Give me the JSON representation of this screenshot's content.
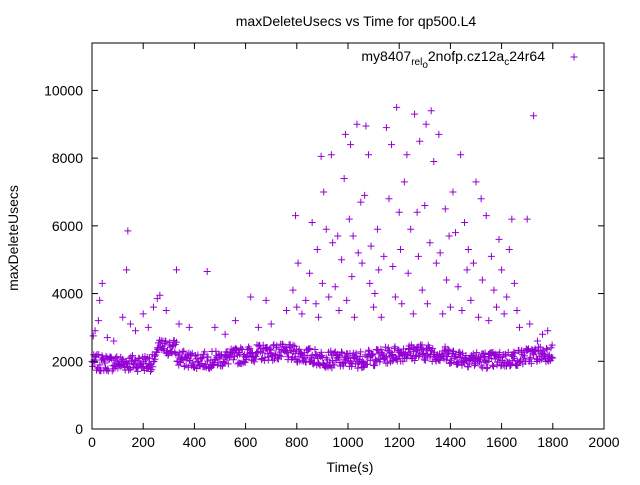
{
  "chart_data": {
    "type": "scatter",
    "title": "maxDeleteUsecs vs Time for qp500.L4",
    "xlabel": "Time(s)",
    "ylabel": "maxDeleteUsecs",
    "xlim": [
      0,
      2000
    ],
    "ylim": [
      0,
      11400
    ],
    "xticks": [
      "0",
      "200",
      "400",
      "600",
      "800",
      "1000",
      "1200",
      "1400",
      "1600",
      "1800",
      "2000"
    ],
    "yticks": [
      "0",
      "2000",
      "4000",
      "6000",
      "8000",
      "10000"
    ],
    "grid": false,
    "legend_position": "top-right",
    "marker": "+",
    "series": [
      {
        "name": "my8407_rel_o2nofp.cz12a_c24r64",
        "legend": {
          "parts": [
            {
              "text": "my8407",
              "shift": "base"
            },
            {
              "text": "rel",
              "shift": "sub"
            },
            {
              "text": "o",
              "shift": "sub2"
            },
            {
              "text": "2nofp.cz12a",
              "shift": "base"
            },
            {
              "text": "c",
              "shift": "sub"
            },
            {
              "text": "24r64",
              "shift": "base"
            }
          ]
        },
        "color": "#9400d3",
        "outliers": [
          [
            5,
            2750
          ],
          [
            12,
            2900
          ],
          [
            25,
            3200
          ],
          [
            30,
            3800
          ],
          [
            40,
            4300
          ],
          [
            60,
            2700
          ],
          [
            85,
            2600
          ],
          [
            120,
            3300
          ],
          [
            135,
            4700
          ],
          [
            140,
            5850
          ],
          [
            150,
            3100
          ],
          [
            170,
            2900
          ],
          [
            200,
            3400
          ],
          [
            220,
            3000
          ],
          [
            240,
            3600
          ],
          [
            255,
            3850
          ],
          [
            265,
            3950
          ],
          [
            290,
            3500
          ],
          [
            330,
            4700
          ],
          [
            340,
            3100
          ],
          [
            380,
            3000
          ],
          [
            450,
            4650
          ],
          [
            480,
            3000
          ],
          [
            520,
            2800
          ],
          [
            560,
            3200
          ],
          [
            620,
            3900
          ],
          [
            650,
            3000
          ],
          [
            680,
            3800
          ],
          [
            700,
            3100
          ],
          [
            760,
            3500
          ],
          [
            785,
            4100
          ],
          [
            800,
            3600
          ],
          [
            795,
            6300
          ],
          [
            805,
            4900
          ],
          [
            820,
            3400
          ],
          [
            835,
            3800
          ],
          [
            850,
            4600
          ],
          [
            860,
            6100
          ],
          [
            875,
            3700
          ],
          [
            880,
            5300
          ],
          [
            885,
            3300
          ],
          [
            895,
            8050
          ],
          [
            900,
            4300
          ],
          [
            905,
            7000
          ],
          [
            915,
            5900
          ],
          [
            925,
            3900
          ],
          [
            935,
            8100
          ],
          [
            940,
            5500
          ],
          [
            950,
            4200
          ],
          [
            960,
            5700
          ],
          [
            965,
            3500
          ],
          [
            975,
            5000
          ],
          [
            985,
            7400
          ],
          [
            990,
            8700
          ],
          [
            995,
            3800
          ],
          [
            1005,
            6200
          ],
          [
            1010,
            8400
          ],
          [
            1015,
            4500
          ],
          [
            1020,
            5700
          ],
          [
            1025,
            3300
          ],
          [
            1035,
            9000
          ],
          [
            1040,
            5200
          ],
          [
            1050,
            6700
          ],
          [
            1055,
            4900
          ],
          [
            1065,
            6900
          ],
          [
            1070,
            8950
          ],
          [
            1080,
            8100
          ],
          [
            1085,
            4300
          ],
          [
            1090,
            5400
          ],
          [
            1100,
            3600
          ],
          [
            1105,
            4000
          ],
          [
            1115,
            5900
          ],
          [
            1120,
            4700
          ],
          [
            1130,
            3300
          ],
          [
            1140,
            5100
          ],
          [
            1150,
            8900
          ],
          [
            1160,
            6800
          ],
          [
            1170,
            8400
          ],
          [
            1175,
            4800
          ],
          [
            1185,
            3900
          ],
          [
            1190,
            9500
          ],
          [
            1200,
            6400
          ],
          [
            1205,
            5300
          ],
          [
            1210,
            3700
          ],
          [
            1220,
            7300
          ],
          [
            1230,
            8100
          ],
          [
            1235,
            4600
          ],
          [
            1245,
            5900
          ],
          [
            1255,
            3400
          ],
          [
            1260,
            9300
          ],
          [
            1270,
            6400
          ],
          [
            1275,
            5100
          ],
          [
            1280,
            8500
          ],
          [
            1290,
            4100
          ],
          [
            1300,
            6600
          ],
          [
            1305,
            9000
          ],
          [
            1310,
            3700
          ],
          [
            1320,
            5500
          ],
          [
            1325,
            9400
          ],
          [
            1335,
            7900
          ],
          [
            1345,
            4900
          ],
          [
            1355,
            8700
          ],
          [
            1360,
            5200
          ],
          [
            1370,
            3400
          ],
          [
            1380,
            6500
          ],
          [
            1385,
            4400
          ],
          [
            1395,
            5700
          ],
          [
            1400,
            3600
          ],
          [
            1410,
            7000
          ],
          [
            1420,
            5800
          ],
          [
            1430,
            4200
          ],
          [
            1440,
            8100
          ],
          [
            1445,
            3500
          ],
          [
            1455,
            6100
          ],
          [
            1465,
            4700
          ],
          [
            1470,
            5300
          ],
          [
            1480,
            3800
          ],
          [
            1490,
            4900
          ],
          [
            1500,
            7300
          ],
          [
            1510,
            3300
          ],
          [
            1520,
            6800
          ],
          [
            1525,
            4400
          ],
          [
            1540,
            6300
          ],
          [
            1550,
            3200
          ],
          [
            1560,
            5100
          ],
          [
            1570,
            4100
          ],
          [
            1580,
            3600
          ],
          [
            1590,
            5600
          ],
          [
            1600,
            4700
          ],
          [
            1610,
            3400
          ],
          [
            1620,
            3900
          ],
          [
            1630,
            5300
          ],
          [
            1640,
            6200
          ],
          [
            1650,
            4300
          ],
          [
            1660,
            3500
          ],
          [
            1670,
            3000
          ],
          [
            1700,
            6200
          ],
          [
            1710,
            3100
          ],
          [
            1725,
            9250
          ],
          [
            1740,
            2600
          ],
          [
            1760,
            2800
          ],
          [
            1780,
            2900
          ]
        ]
      }
    ]
  }
}
